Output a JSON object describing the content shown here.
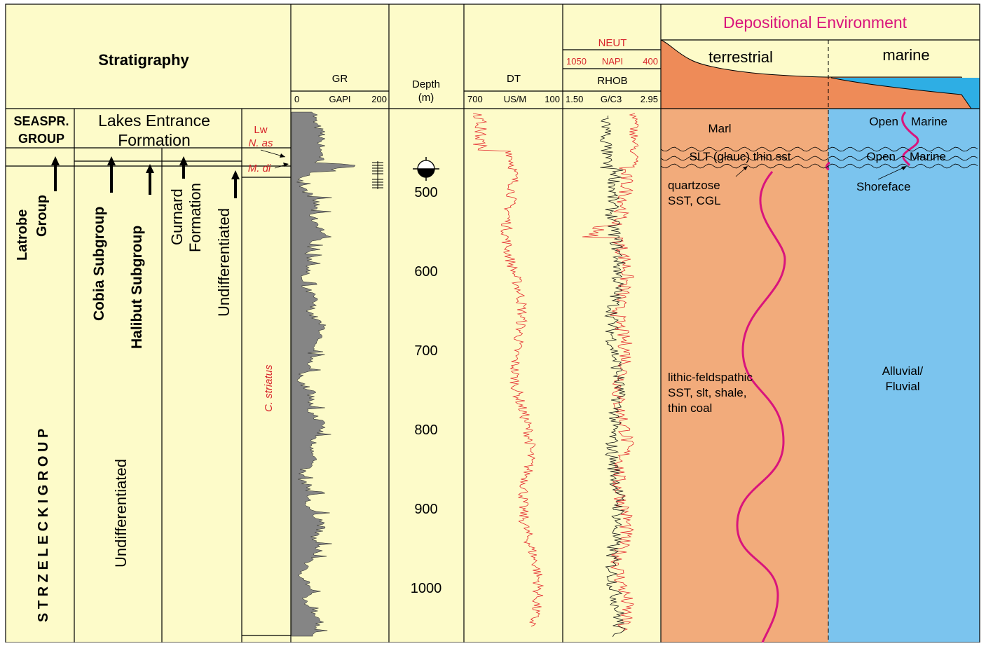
{
  "header": {
    "stratigraphy": "Stratigraphy",
    "depositional_environment": "Depositional Environment",
    "terrestrial": "terrestrial",
    "marine": "marine"
  },
  "tracks": {
    "gr": {
      "name": "GR",
      "left": "0",
      "unit": "GAPI",
      "right": "200"
    },
    "depth": {
      "name": "Depth",
      "unit": "(m)"
    },
    "dt": {
      "name": "DT",
      "left": "700",
      "unit": "US/M",
      "right": "100"
    },
    "neut": {
      "name": "NEUT",
      "left": "1050",
      "unit": "NAPI",
      "right": "400"
    },
    "rhob": {
      "name": "RHOB",
      "left": "1.50",
      "unit": "G/C3",
      "right": "2.95"
    }
  },
  "depth_ticks": [
    "500",
    "600",
    "700",
    "800",
    "900",
    "1000"
  ],
  "stratigraphy": {
    "seaspray_1": "SEASPR.",
    "seaspray_2": "GROUP",
    "lakes_entrance_1": "Lakes Entrance",
    "lakes_entrance_2": "Formation",
    "latrobe_1": "Latrobe",
    "latrobe_2": "Group",
    "strzelecki": "S T R Z E L E C K I   G R O U P",
    "cobia": "Cobia Subgroup",
    "halibut": "Halibut Subgroup",
    "gurnard_1": "Gurnard",
    "gurnard_2": "Formation",
    "undiff_1": "Undifferentiated",
    "undiff_2": "Undifferentiated"
  },
  "biozones": {
    "lw": "Lw",
    "n_as": "N. as",
    "m_di": "M. di",
    "c_striatus": "C. striatus"
  },
  "lithology": {
    "marl": "Marl",
    "slt": "SLT (glauc) thin sst",
    "quartzose_1": "quartzose",
    "quartzose_2": "SST, CGL",
    "lithic_1": "lithic-feldspathic",
    "lithic_2": "SST, slt, shale,",
    "lithic_3": "thin coal"
  },
  "environment": {
    "open_marine_1a": "Open",
    "open_marine_1b": "Marine",
    "open_marine_2a": "Open",
    "open_marine_2b": "Marine",
    "shoreface": "Shoreface",
    "alluvial_1": "Alluvial/",
    "alluvial_2": "Fluvial"
  },
  "colors": {
    "background": "#fdfbc9",
    "gr_fill": "#858585",
    "dt_curve": "#e3262b",
    "neut_curve": "#e3262b",
    "rhob_curve": "#111111",
    "terrestrial_fill": "#f2ab7b",
    "terrestrial_header": "#ee8b58",
    "marine_fill": "#7bc4ee",
    "marine_header": "#2eaee4",
    "trend_curve": "#d9157c",
    "title_magenta": "#d9157c"
  }
}
